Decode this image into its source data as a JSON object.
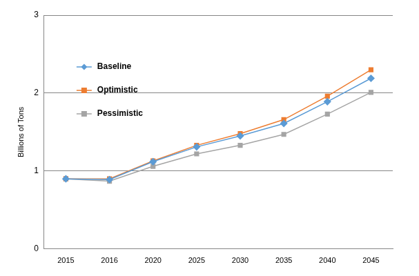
{
  "chart_data": {
    "type": "line",
    "y_label": "Billions of Tons",
    "categories": [
      "2015",
      "2016",
      "2020",
      "2025",
      "2030",
      "2035",
      "2040",
      "2045"
    ],
    "series": [
      {
        "name": "Baseline",
        "color": "#5b9bd5",
        "marker": "diamond",
        "values": [
          0.9,
          0.89,
          1.12,
          1.31,
          1.45,
          1.61,
          1.89,
          2.19
        ]
      },
      {
        "name": "Optimistic",
        "color": "#ed7d31",
        "marker": "square",
        "values": [
          0.9,
          0.9,
          1.13,
          1.33,
          1.48,
          1.66,
          1.96,
          2.3
        ]
      },
      {
        "name": "Pessimistic",
        "color": "#a5a5a5",
        "marker": "square",
        "values": [
          0.9,
          0.87,
          1.06,
          1.22,
          1.33,
          1.47,
          1.73,
          2.01
        ]
      }
    ],
    "ylim": [
      0,
      3
    ],
    "yticks": [
      0,
      1,
      2,
      3
    ],
    "grid": true,
    "legend": "upper left"
  }
}
